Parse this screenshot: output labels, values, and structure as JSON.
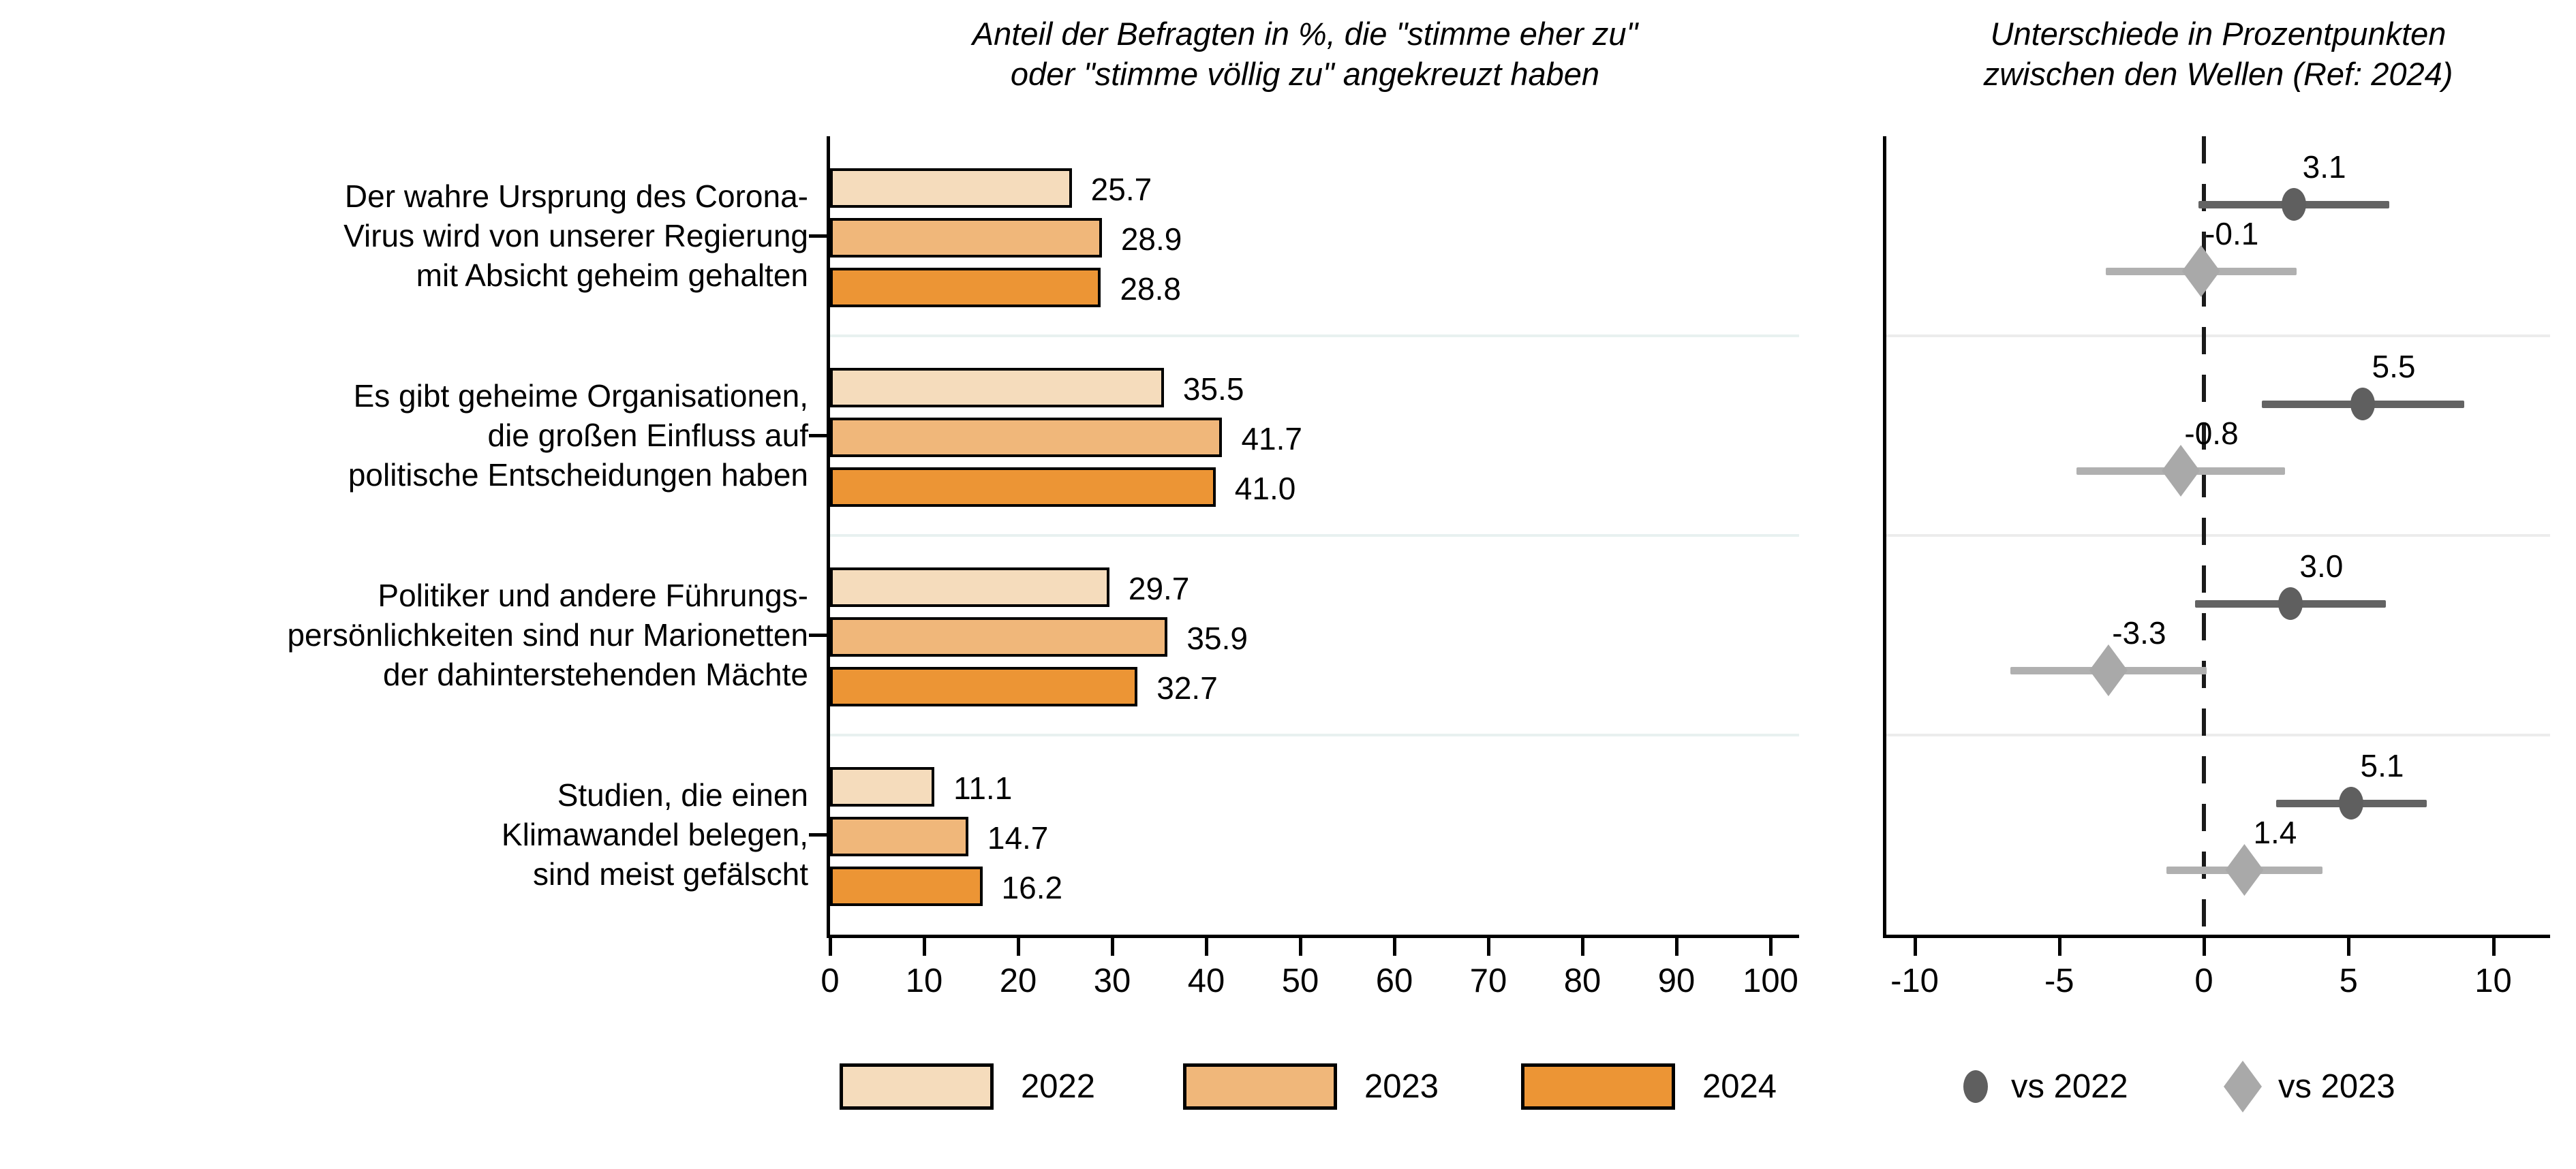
{
  "titles": {
    "left_line1": "Anteil der Befragten in %, die \"stimme eher zu\"",
    "left_line2": "oder \"stimme völlig zu\" angekreuzt haben",
    "right_line1": "Unterschiede in Prozentpunkten",
    "right_line2": "zwischen den Wellen (Ref: 2024)"
  },
  "colors": {
    "bar_2022": "#f5dcbc",
    "bar_2023": "#f0b77a",
    "bar_2024": "#ec9535",
    "bar_border": "#000000",
    "vs_2022": "#5f5f5f",
    "vs_2022_line": "#636363",
    "vs_2023": "#a9a9a9",
    "vs_2023_line": "#b0b0b0",
    "separator_left_panel": "#e8f1f0",
    "separator_right_panel": "#ececec",
    "axis": "#000000",
    "refline": "#1a1a1a",
    "text": "#000000"
  },
  "legend_years": [
    {
      "label": "2022",
      "color_key": "bar_2022"
    },
    {
      "label": "2023",
      "color_key": "bar_2023"
    },
    {
      "label": "2024",
      "color_key": "bar_2024"
    }
  ],
  "legend_diff": [
    {
      "label": "vs 2022",
      "marker": "circle",
      "color_key": "vs_2022"
    },
    {
      "label": "vs 2023",
      "marker": "diamond",
      "color_key": "vs_2023"
    }
  ],
  "chart_data": [
    {
      "type": "bar",
      "orientation": "horizontal",
      "title": "Anteil der Befragten in %, die \"stimme eher zu\" oder \"stimme völlig zu\" angekreuzt haben",
      "categories": [
        [
          "Der wahre Ursprung des Corona-",
          "Virus wird von unserer Regierung",
          "mit Absicht geheim gehalten"
        ],
        [
          "Es gibt geheime Organisationen,",
          "die großen Einfluss auf",
          "politische Entscheidungen haben"
        ],
        [
          "Politiker und andere Führungs-",
          "persönlichkeiten sind nur Marionetten",
          "der dahinterstehenden Mächte"
        ],
        [
          "Studien, die einen",
          "Klimawandel belegen,",
          "sind meist gefälscht"
        ]
      ],
      "series": [
        {
          "name": "2022",
          "values": [
            25.7,
            35.5,
            29.7,
            11.1
          ]
        },
        {
          "name": "2023",
          "values": [
            28.9,
            41.7,
            35.9,
            14.7
          ]
        },
        {
          "name": "2024",
          "values": [
            28.8,
            41.0,
            32.7,
            16.2
          ]
        }
      ],
      "xlim": [
        0,
        100
      ],
      "xticks": [
        0,
        10,
        20,
        30,
        40,
        50,
        60,
        70,
        80,
        90,
        100
      ],
      "grid": "group-separators",
      "value_labels_decimals": 1,
      "legend_position": "bottom"
    },
    {
      "type": "scatter",
      "subtype": "dot-interval",
      "title": "Unterschiede in Prozentpunkten zwischen den Wellen (Ref: 2024)",
      "categories_ref": "same as left panel",
      "series": [
        {
          "name": "vs 2022",
          "marker": "circle",
          "values": [
            3.1,
            5.5,
            3.0,
            5.1
          ],
          "ci_low": [
            -0.2,
            2.0,
            -0.3,
            2.5
          ],
          "ci_high": [
            6.4,
            9.0,
            6.3,
            7.7
          ]
        },
        {
          "name": "vs 2023",
          "marker": "diamond",
          "values": [
            -0.1,
            -0.8,
            -3.3,
            1.4
          ],
          "ci_low": [
            -3.4,
            -4.4,
            -6.7,
            -1.3
          ],
          "ci_high": [
            3.2,
            2.8,
            0.1,
            4.1
          ]
        }
      ],
      "xlim": [
        -11,
        12
      ],
      "xticks": [
        -10,
        -5,
        0,
        5,
        10
      ],
      "refline_x": 0,
      "grid": "group-separators",
      "value_labels_decimals": 1,
      "legend_position": "bottom"
    }
  ]
}
